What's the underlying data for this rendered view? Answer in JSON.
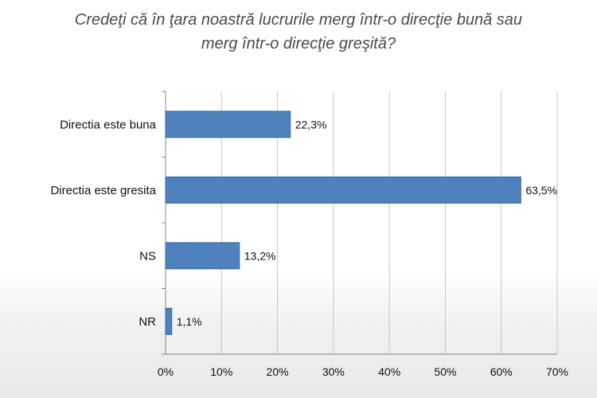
{
  "title_lines": [
    "Credeţi că în ţara noastră lucrurile merg într-o direcţie bună sau",
    "merg într-o direcţie greşită?"
  ],
  "colors": {
    "bar": "#4f81bd",
    "bar_edge": "#3b6aa3",
    "grid": "#c8c8c8",
    "axis": "#888888"
  },
  "chart_data": {
    "type": "bar",
    "orientation": "horizontal",
    "title": "Credeţi că în ţara noastră lucrurile merg într-o direcţie bună sau merg într-o direcţie greşită?",
    "categories": [
      "Directia este buna",
      "Directia este gresita",
      "NS",
      "NR"
    ],
    "values": [
      22.3,
      63.5,
      13.2,
      1.1
    ],
    "value_labels": [
      "22,3%",
      "63,5%",
      "13,2%",
      "1,1%"
    ],
    "xlim": [
      0,
      70
    ],
    "x_ticks": [
      0,
      10,
      20,
      30,
      40,
      50,
      60,
      70
    ],
    "x_tick_labels": [
      "0%",
      "10%",
      "20%",
      "30%",
      "40%",
      "50%",
      "60%",
      "70%"
    ],
    "grid": true,
    "legend": "none"
  }
}
